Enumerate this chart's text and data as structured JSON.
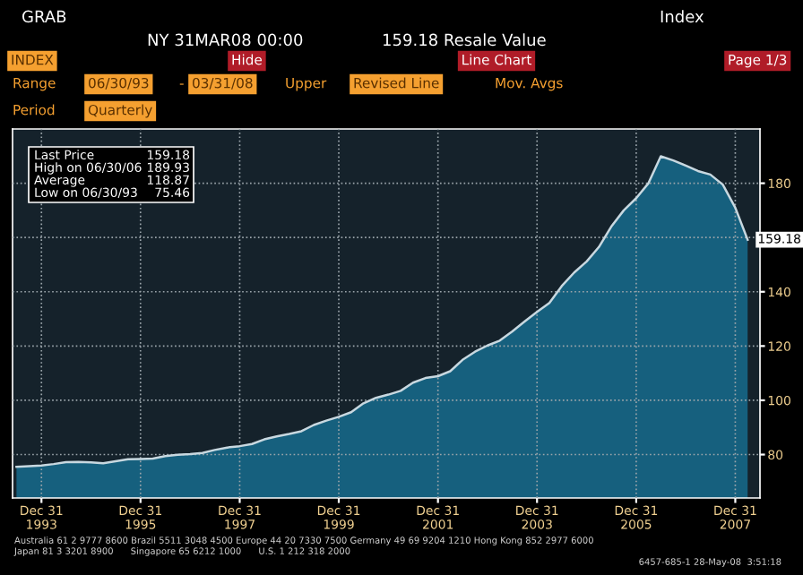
{
  "chart_data": {
    "type": "area",
    "annotations": [
      "GRAB",
      "Index",
      "NY 31MAR08 00:00",
      "159.18 Resale Value",
      "INDEX",
      "Hide",
      "Line Chart",
      "Page 1/3",
      "Range",
      "06/30/93",
      "-",
      "03/31/08",
      "Upper",
      "Revised Line",
      "Mov. Avgs",
      "Period",
      "Quarterly",
      "Last Price",
      "159.18",
      "High on 06/30/06",
      "189.93",
      "Average",
      "118.87",
      "Low on 06/30/93",
      "75.46",
      "Australia 61 2 9777 8600 Brazil 5511 3048 4500 Europe 44 20 7330 7500 Germany 49 69 9204 1210 Hong Kong 852 2977 6000",
      "Japan 81 3 3201 8900      Singapore 65 6212 1000      U.S. 1 212 318 2000",
      "6457-685-1 28-May-08  3:51:18"
    ],
    "x": [
      "1993-06-30",
      "1993-09-30",
      "1993-12-31",
      "1994-03-31",
      "1994-06-30",
      "1994-09-30",
      "1994-12-31",
      "1995-03-31",
      "1995-06-30",
      "1995-09-30",
      "1995-12-31",
      "1996-03-31",
      "1996-06-30",
      "1996-09-30",
      "1996-12-31",
      "1997-03-31",
      "1997-06-30",
      "1997-09-30",
      "1997-12-31",
      "1998-03-31",
      "1998-06-30",
      "1998-09-30",
      "1998-12-31",
      "1999-03-31",
      "1999-06-30",
      "1999-09-30",
      "1999-12-31",
      "2000-03-31",
      "2000-06-30",
      "2000-09-30",
      "2000-12-31",
      "2001-03-31",
      "2001-06-30",
      "2001-09-30",
      "2001-12-31",
      "2002-03-31",
      "2002-06-30",
      "2002-09-30",
      "2002-12-31",
      "2003-03-31",
      "2003-06-30",
      "2003-09-30",
      "2003-12-31",
      "2004-03-31",
      "2004-06-30",
      "2004-09-30",
      "2004-12-31",
      "2005-03-31",
      "2005-06-30",
      "2005-09-30",
      "2005-12-31",
      "2006-03-31",
      "2006-06-30",
      "2006-09-30",
      "2006-12-31",
      "2007-03-31",
      "2007-06-30",
      "2007-09-30",
      "2007-12-31",
      "2008-03-31"
    ],
    "series": [
      {
        "color": "#16607e",
        "values": [
          75.46,
          75.7,
          76.0,
          76.5,
          77.2,
          77.3,
          77.1,
          76.8,
          77.5,
          78.3,
          78.4,
          78.5,
          79.4,
          79.9,
          80.2,
          80.6,
          81.7,
          82.6,
          83.1,
          83.9,
          85.6,
          86.7,
          87.6,
          88.6,
          90.9,
          92.5,
          93.9,
          95.6,
          98.9,
          100.9,
          102.1,
          103.5,
          106.5,
          108.2,
          108.9,
          110.7,
          114.9,
          117.9,
          120.2,
          122.0,
          125.3,
          129.0,
          132.6,
          135.9,
          142.1,
          147.1,
          151.2,
          156.5,
          164.0,
          170.0,
          174.5,
          180.0,
          189.93,
          188.4,
          186.5,
          184.5,
          183.2,
          179.5,
          171.0,
          159.18
        ],
        "value_labels": [
          null,
          null,
          null,
          null,
          null,
          null,
          null,
          null,
          null,
          null,
          null,
          null,
          null,
          null,
          null,
          null,
          null,
          null,
          null,
          null,
          null,
          null,
          null,
          null,
          null,
          null,
          null,
          null,
          null,
          null,
          null,
          null,
          null,
          null,
          null,
          null,
          null,
          null,
          null,
          null,
          null,
          null,
          null,
          null,
          null,
          null,
          null,
          null,
          null,
          null,
          null,
          null,
          null,
          null,
          null,
          null,
          null,
          null,
          null,
          "159.18"
        ]
      }
    ],
    "xlim": [
      "1993-06-01",
      "2008-06-30"
    ],
    "xticks": [
      {
        "value": "1993-12-31",
        "label": "Dec 31\n1993"
      },
      {
        "value": "1995-12-31",
        "label": "Dec 31\n1995"
      },
      {
        "value": "1997-12-31",
        "label": "Dec 31\n1997"
      },
      {
        "value": "1999-12-31",
        "label": "Dec 31\n1999"
      },
      {
        "value": "2001-12-31",
        "label": "Dec 31\n2001"
      },
      {
        "value": "2003-12-31",
        "label": "Dec 31\n2003"
      },
      {
        "value": "2005-12-31",
        "label": "Dec 31\n2005"
      },
      {
        "value": "2007-12-31",
        "label": "Dec 31\n2007"
      }
    ],
    "ylim": [
      64,
      200
    ],
    "yticks": [
      80,
      100,
      120,
      140,
      {
        "value": 160,
        "label": null
      },
      180
    ],
    "grid": true,
    "line_style": "solid",
    "marker": "none"
  }
}
